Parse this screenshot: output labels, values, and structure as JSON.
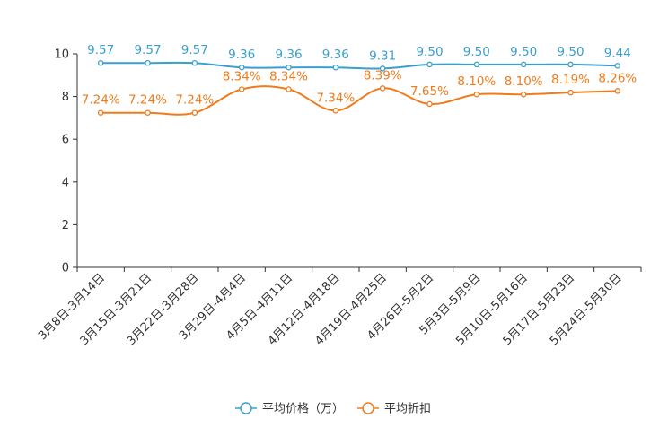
{
  "chart_data": {
    "type": "line",
    "title": "",
    "xlabel": "",
    "ylabel": "",
    "ylim": [
      0,
      10
    ],
    "yticks": [
      0,
      2,
      4,
      6,
      8,
      10
    ],
    "grid": false,
    "legend_position": "bottom-center",
    "categories": [
      "3月8日-3月14日",
      "3月15日-3月21日",
      "3月22日-3月28日",
      "3月29日-4月4日",
      "4月5日-4月11日",
      "4月12日-4月18日",
      "4月19日-4月25日",
      "4月26日-5月2日",
      "5月3日-5月9日",
      "5月10日-5月16日",
      "5月17日-5月23日",
      "5月24日-5月30日"
    ],
    "series": [
      {
        "name": "平均价格（万）",
        "color": "#3a9fcf",
        "values": [
          9.57,
          9.57,
          9.57,
          9.36,
          9.36,
          9.36,
          9.31,
          9.5,
          9.5,
          9.5,
          9.5,
          9.44
        ],
        "labels": [
          "9.57",
          "9.57",
          "9.57",
          "9.36",
          "9.36",
          "9.36",
          "9.31",
          "9.50",
          "9.50",
          "9.50",
          "9.50",
          "9.44"
        ]
      },
      {
        "name": "平均折扣",
        "color": "#f07b1a",
        "values": [
          7.24,
          7.24,
          7.24,
          8.34,
          8.34,
          7.34,
          8.39,
          7.65,
          8.1,
          8.1,
          8.19,
          8.26
        ],
        "labels": [
          "7.24%",
          "7.24%",
          "7.24%",
          "8.34%",
          "8.34%",
          "7.34%",
          "8.39%",
          "7.65%",
          "8.10%",
          "8.10%",
          "8.19%",
          "8.26%"
        ]
      }
    ]
  }
}
